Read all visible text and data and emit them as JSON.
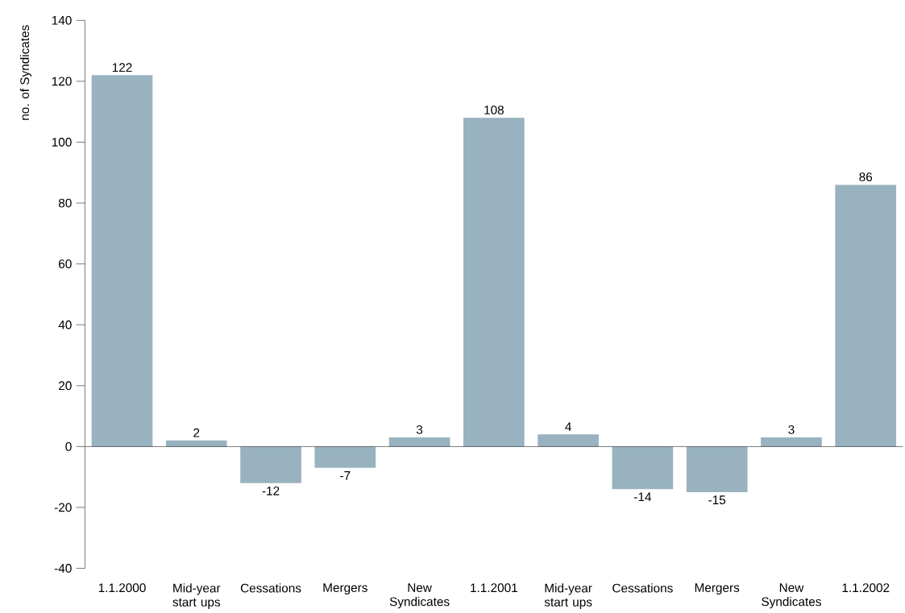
{
  "chart_data": {
    "type": "bar",
    "ylabel": "no. of Syndicates",
    "categories": [
      "1.1.2000",
      "Mid-year start ups",
      "Cessations",
      "Mergers",
      "New Syndicates",
      "1.1.2001",
      "Mid-year start ups",
      "Cessations",
      "Mergers",
      "New Syndicates",
      "1.1.2002"
    ],
    "values": [
      122,
      2,
      -12,
      -7,
      3,
      108,
      4,
      -14,
      -15,
      3,
      86
    ],
    "color": "#98b2c0",
    "data_labels": true,
    "ylim": [
      -40,
      140
    ],
    "yticks": [
      -40,
      -20,
      0,
      20,
      40,
      60,
      80,
      100,
      120,
      140
    ]
  }
}
